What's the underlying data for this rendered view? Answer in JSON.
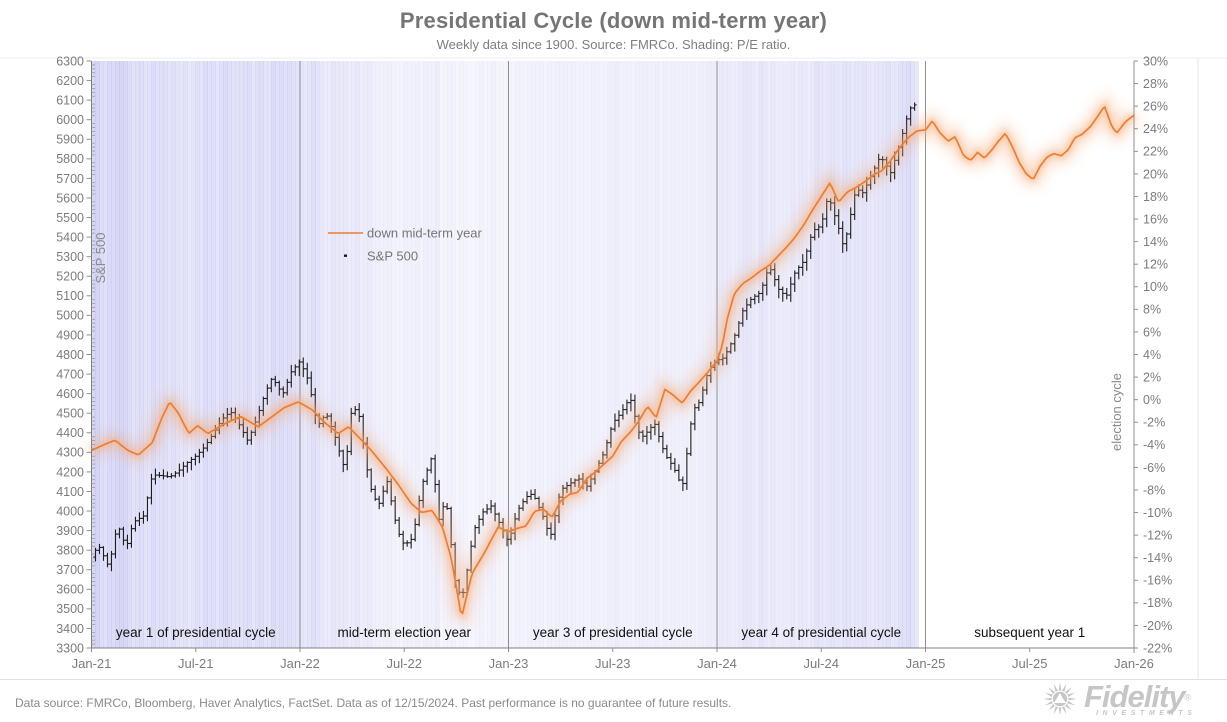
{
  "title": "Presidential Cycle (down mid-term year)",
  "subtitle": "Weekly data since 1900. Source: FMRCo. Shading: P/E ratio.",
  "footer": "Data source: FMRCo, Bloomberg, Haver Analytics, FactSet. Data as of 12/15/2024. Past performance is no guarantee of future results.",
  "logo": {
    "brand": "Fidelity",
    "reg": "®",
    "sub": "INVESTMENTS"
  },
  "legend": [
    {
      "label": "down mid-term year",
      "marker": "line",
      "color": "#ED7D31"
    },
    {
      "label": "S&P 500",
      "marker": "dot",
      "color": "#1c1c1c"
    }
  ],
  "left_axis": {
    "label": "S&P 500",
    "min": 3300,
    "max": 6300,
    "step": 100
  },
  "right_axis": {
    "label": "election cycle",
    "min": -22,
    "max": 30,
    "step": 2,
    "suffix": "%"
  },
  "x_axis": {
    "tick_labels": [
      "Jan-21",
      "Jul-21",
      "Jan-22",
      "Jul-22",
      "Jan-23",
      "Jul-23",
      "Jan-24",
      "Jul-24",
      "Jan-25",
      "Jul-25",
      "Jan-26"
    ]
  },
  "sections": [
    "year 1 of presidential cycle",
    "mid-term election year",
    "year 3 of presidential cycle",
    "year 4 of presidential cycle",
    "subsequent year 1"
  ],
  "chart_data": {
    "type": "line",
    "x_unit": "months since Jan-2021 (ticks every 6 months)",
    "x_range": [
      0,
      60
    ],
    "left_axis_range": [
      3300,
      6300
    ],
    "right_axis_range": [
      -22,
      30
    ],
    "grid": false,
    "legend_position": "inside-upper-left",
    "dividers_t": [
      12,
      24,
      36,
      48,
      60
    ],
    "series": [
      {
        "name": "down mid-term year",
        "axis": "right",
        "color": "#ED7D31",
        "style": "line-with-glow",
        "points": [
          [
            0,
            -4.5
          ],
          [
            0.7,
            -4.0
          ],
          [
            1.35,
            -3.6
          ],
          [
            2.1,
            -4.5
          ],
          [
            2.7,
            -4.9
          ],
          [
            3.5,
            -3.8
          ],
          [
            4.05,
            -1.6
          ],
          [
            4.5,
            -0.2
          ],
          [
            5.0,
            -1.2
          ],
          [
            5.6,
            -3.0
          ],
          [
            6.1,
            -2.3
          ],
          [
            6.7,
            -3.0
          ],
          [
            7.7,
            -2.1
          ],
          [
            8.6,
            -1.5
          ],
          [
            9.6,
            -2.4
          ],
          [
            10.4,
            -1.5
          ],
          [
            11.1,
            -0.7
          ],
          [
            11.9,
            -0.2
          ],
          [
            12.7,
            -0.9
          ],
          [
            13.4,
            -2.0
          ],
          [
            14.2,
            -3.0
          ],
          [
            14.8,
            -2.4
          ],
          [
            15.3,
            -3.2
          ],
          [
            16.1,
            -4.5
          ],
          [
            16.9,
            -6.0
          ],
          [
            17.6,
            -7.4
          ],
          [
            18.4,
            -9.2
          ],
          [
            19.0,
            -10.0
          ],
          [
            19.6,
            -9.8
          ],
          [
            20.2,
            -11.3
          ],
          [
            20.7,
            -14.0
          ],
          [
            21.3,
            -19.3
          ],
          [
            21.9,
            -15.4
          ],
          [
            22.6,
            -13.6
          ],
          [
            23.4,
            -11.3
          ],
          [
            24.0,
            -11.7
          ],
          [
            24.5,
            -11.4
          ],
          [
            25,
            -11.2
          ],
          [
            25.5,
            -9.9
          ],
          [
            26,
            -9.7
          ],
          [
            26.5,
            -10.4
          ],
          [
            27,
            -9.0
          ],
          [
            27.5,
            -8.4
          ],
          [
            28,
            -8.2
          ],
          [
            28.5,
            -7.0
          ],
          [
            29,
            -6.4
          ],
          [
            29.5,
            -5.7
          ],
          [
            30,
            -5.0
          ],
          [
            30.5,
            -3.7
          ],
          [
            31,
            -2.9
          ],
          [
            31.5,
            -1.9
          ],
          [
            32,
            -0.6
          ],
          [
            32.5,
            -1.6
          ],
          [
            33,
            0.9
          ],
          [
            33.4,
            0.5
          ],
          [
            34,
            -0.3
          ],
          [
            34.5,
            0.8
          ],
          [
            35,
            1.6
          ],
          [
            35.5,
            2.5
          ],
          [
            36,
            3.4
          ],
          [
            36.3,
            4.8
          ],
          [
            36.6,
            7.2
          ],
          [
            37,
            9.4
          ],
          [
            37.5,
            10.3
          ],
          [
            38,
            10.8
          ],
          [
            38.5,
            11.4
          ],
          [
            39,
            11.9
          ],
          [
            39.5,
            12.7
          ],
          [
            40,
            13.5
          ],
          [
            40.5,
            14.4
          ],
          [
            41,
            15.5
          ],
          [
            41.5,
            16.8
          ],
          [
            42,
            18.0
          ],
          [
            42.5,
            19.2
          ],
          [
            43,
            17.5
          ],
          [
            43.5,
            18.4
          ],
          [
            44,
            18.8
          ],
          [
            44.5,
            19.3
          ],
          [
            45,
            19.9
          ],
          [
            45.5,
            20.3
          ],
          [
            46,
            21.2
          ],
          [
            46.5,
            22.3
          ],
          [
            47,
            23.2
          ],
          [
            47.5,
            23.8
          ],
          [
            48,
            23.9
          ],
          [
            48.4,
            24.7
          ],
          [
            48.8,
            23.7
          ],
          [
            49.3,
            22.9
          ],
          [
            49.7,
            23.3
          ],
          [
            50.2,
            21.6
          ],
          [
            50.6,
            21.2
          ],
          [
            51,
            21.9
          ],
          [
            51.4,
            21.4
          ],
          [
            51.8,
            22.1
          ],
          [
            52.2,
            22.9
          ],
          [
            52.6,
            23.6
          ],
          [
            53,
            22.4
          ],
          [
            53.4,
            21.0
          ],
          [
            53.8,
            20.0
          ],
          [
            54.2,
            19.5
          ],
          [
            54.6,
            20.7
          ],
          [
            55,
            21.5
          ],
          [
            55.4,
            21.8
          ],
          [
            55.8,
            21.6
          ],
          [
            56.2,
            22.1
          ],
          [
            56.6,
            23.2
          ],
          [
            57,
            23.5
          ],
          [
            57.5,
            24.2
          ],
          [
            58,
            25.3
          ],
          [
            58.3,
            26.0
          ],
          [
            58.7,
            24.3
          ],
          [
            59,
            23.6
          ],
          [
            59.5,
            24.6
          ],
          [
            60,
            25.2
          ]
        ]
      },
      {
        "name": "S&P 500",
        "axis": "left",
        "color": "#1c1c1c",
        "style": "weekly-ohlc-bars",
        "end_t": 47.5,
        "points": [
          [
            0,
            3765
          ],
          [
            0.4,
            3825
          ],
          [
            1,
            3714
          ],
          [
            1.5,
            3935
          ],
          [
            2,
            3811
          ],
          [
            2.4,
            3943
          ],
          [
            3,
            3975
          ],
          [
            3.5,
            4185
          ],
          [
            4,
            4181
          ],
          [
            4.5,
            4174
          ],
          [
            5,
            4204
          ],
          [
            5.5,
            4247
          ],
          [
            6,
            4281
          ],
          [
            6.5,
            4327
          ],
          [
            7,
            4395
          ],
          [
            7.5,
            4468
          ],
          [
            8,
            4509
          ],
          [
            8.4,
            4459
          ],
          [
            9,
            4357
          ],
          [
            9.5,
            4471
          ],
          [
            10,
            4605
          ],
          [
            10.4,
            4683
          ],
          [
            11,
            4595
          ],
          [
            11.5,
            4712
          ],
          [
            12,
            4766
          ],
          [
            12.5,
            4663
          ],
          [
            13,
            4432
          ],
          [
            13.5,
            4501
          ],
          [
            14,
            4385
          ],
          [
            14.6,
            4204
          ],
          [
            15,
            4543
          ],
          [
            15.4,
            4488
          ],
          [
            16,
            4132
          ],
          [
            16.5,
            4024
          ],
          [
            17,
            4158
          ],
          [
            17.6,
            3901
          ],
          [
            18,
            3825
          ],
          [
            18.5,
            3863
          ],
          [
            19,
            4130
          ],
          [
            19.6,
            4280
          ],
          [
            20,
            3955
          ],
          [
            20.4,
            4067
          ],
          [
            21,
            3586
          ],
          [
            21.4,
            3583
          ],
          [
            22,
            3901
          ],
          [
            22.5,
            3993
          ],
          [
            23,
            4026
          ],
          [
            23.5,
            3934
          ],
          [
            24,
            3840
          ],
          [
            24.5,
            3999
          ],
          [
            25,
            4071
          ],
          [
            25.4,
            4090
          ],
          [
            26,
            3970
          ],
          [
            26.4,
            3862
          ],
          [
            27,
            4109
          ],
          [
            27.5,
            4138
          ],
          [
            28,
            4169
          ],
          [
            28.5,
            4124
          ],
          [
            29,
            4205
          ],
          [
            29.5,
            4299
          ],
          [
            30,
            4450
          ],
          [
            30.5,
            4505
          ],
          [
            31,
            4582
          ],
          [
            31.6,
            4370
          ],
          [
            32,
            4406
          ],
          [
            32.4,
            4450
          ],
          [
            33,
            4288
          ],
          [
            33.5,
            4224
          ],
          [
            34,
            4117
          ],
          [
            34.6,
            4514
          ],
          [
            35,
            4559
          ],
          [
            35.5,
            4719
          ],
          [
            36,
            4770
          ],
          [
            36.4,
            4784
          ],
          [
            37,
            4891
          ],
          [
            37.5,
            5027
          ],
          [
            38,
            5088
          ],
          [
            38.5,
            5117
          ],
          [
            39,
            5254
          ],
          [
            39.6,
            5123
          ],
          [
            40,
            5100
          ],
          [
            40.5,
            5222
          ],
          [
            41,
            5278
          ],
          [
            41.5,
            5431
          ],
          [
            42,
            5460
          ],
          [
            42.4,
            5615
          ],
          [
            43,
            5446
          ],
          [
            43.3,
            5344
          ],
          [
            44,
            5648
          ],
          [
            44.4,
            5626
          ],
          [
            45,
            5738
          ],
          [
            45.4,
            5815
          ],
          [
            46,
            5729
          ],
          [
            46.5,
            5870
          ],
          [
            47,
            6032
          ],
          [
            47.3,
            6090
          ],
          [
            47.5,
            6051
          ]
        ]
      }
    ],
    "shading": {
      "label": "P/E ratio",
      "color": "#6E6EDB",
      "end_t": 47.6,
      "monthly_alpha": [
        0.25,
        0.25,
        0.22,
        0.2,
        0.19,
        0.19,
        0.2,
        0.21,
        0.19,
        0.2,
        0.21,
        0.2,
        0.19,
        0.17,
        0.16,
        0.14,
        0.11,
        0.09,
        0.1,
        0.11,
        0.08,
        0.07,
        0.08,
        0.08,
        0.08,
        0.09,
        0.09,
        0.09,
        0.09,
        0.1,
        0.11,
        0.11,
        0.1,
        0.09,
        0.1,
        0.12,
        0.13,
        0.14,
        0.15,
        0.14,
        0.15,
        0.16,
        0.17,
        0.17,
        0.18,
        0.18,
        0.2,
        0.2
      ]
    }
  }
}
